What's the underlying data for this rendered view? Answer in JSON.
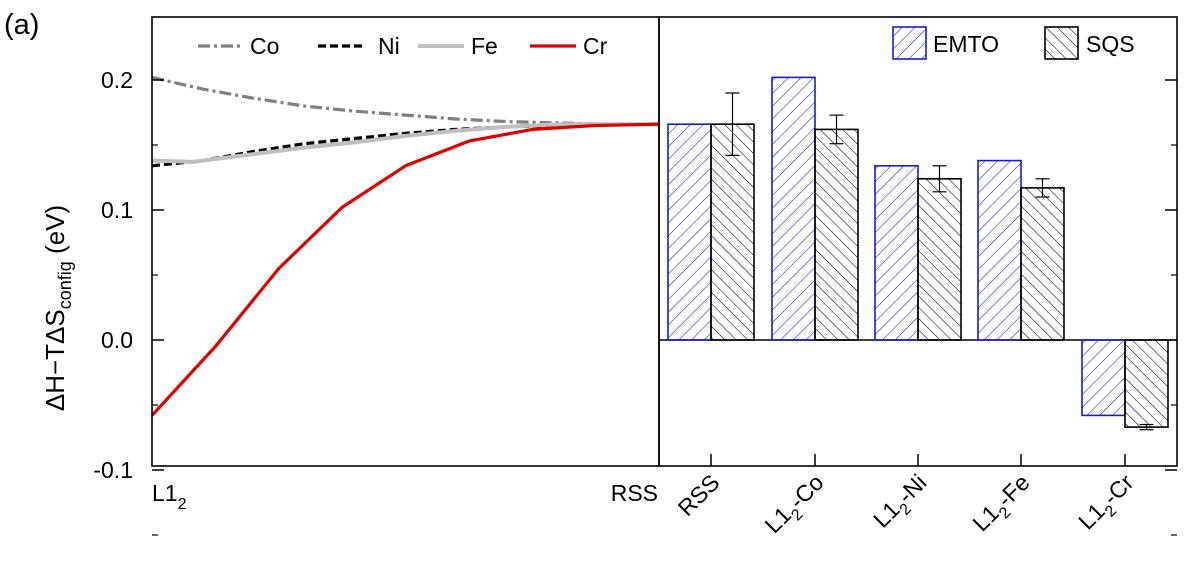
{
  "panel_label": "(a)",
  "ylabel": {
    "main": "ΔH−TΔS",
    "sub": "config",
    "unit": " (eV)"
  },
  "yticks": [
    "0.2",
    "0.1",
    "0.0",
    "-0.1"
  ],
  "ytick_values": [
    0.2,
    0.1,
    0.0,
    -0.1
  ],
  "chart_data": [
    {
      "type": "line",
      "xlabel_left": "L1",
      "xlabel_left_sub": "2",
      "xlabel_right": "RSS",
      "xlim": [
        0,
        1
      ],
      "ylim": [
        -0.1,
        0.25
      ],
      "legend_position": "top",
      "series": [
        {
          "name": "Co",
          "color": "#7f7f7f",
          "style": "dash-dot",
          "x": [
            0,
            0.1,
            0.2,
            0.3,
            0.4,
            0.5,
            0.6,
            0.7,
            0.8,
            0.9,
            1.0
          ],
          "y": [
            0.202,
            0.193,
            0.186,
            0.18,
            0.176,
            0.173,
            0.17,
            0.168,
            0.167,
            0.166,
            0.166
          ]
        },
        {
          "name": "Ni",
          "color": "#000000",
          "style": "dash",
          "x": [
            0,
            0.1,
            0.2,
            0.3,
            0.4,
            0.5,
            0.6,
            0.7,
            0.8,
            0.9,
            1.0
          ],
          "y": [
            0.134,
            0.138,
            0.145,
            0.151,
            0.155,
            0.159,
            0.162,
            0.164,
            0.165,
            0.166,
            0.166
          ]
        },
        {
          "name": "Fe",
          "color": "#bfbfbf",
          "style": "solid",
          "x": [
            0,
            0.08,
            0.2,
            0.3,
            0.4,
            0.5,
            0.6,
            0.7,
            0.8,
            0.9,
            1.0
          ],
          "y": [
            0.138,
            0.137,
            0.143,
            0.148,
            0.152,
            0.157,
            0.161,
            0.164,
            0.166,
            0.166,
            0.166
          ]
        },
        {
          "name": "Cr",
          "color": "#e00000",
          "style": "solid",
          "x": [
            0,
            0.125,
            0.25,
            0.375,
            0.5,
            0.625,
            0.75,
            0.875,
            1.0
          ],
          "y": [
            -0.058,
            -0.005,
            0.055,
            0.102,
            0.134,
            0.153,
            0.162,
            0.165,
            0.166
          ]
        }
      ]
    },
    {
      "type": "bar",
      "categories": [
        {
          "base": "RSS",
          "sub": "",
          "tail": ""
        },
        {
          "base": "L1",
          "sub": "2",
          "tail": "-Co"
        },
        {
          "base": "L1",
          "sub": "2",
          "tail": "-Ni"
        },
        {
          "base": "L1",
          "sub": "2",
          "tail": "-Fe"
        },
        {
          "base": "L1",
          "sub": "2",
          "tail": "-Cr"
        }
      ],
      "ylim": [
        -0.1,
        0.25
      ],
      "legend_position": "top-right",
      "series": [
        {
          "name": "EMTO",
          "edge_color": "#1a1ad6",
          "hatch": "diagonal-up",
          "values": [
            0.166,
            0.202,
            0.134,
            0.138,
            -0.058
          ],
          "errors": null
        },
        {
          "name": "SQS",
          "edge_color": "#000000",
          "hatch": "diagonal-down",
          "values": [
            0.166,
            0.162,
            0.124,
            0.117,
            -0.067
          ],
          "errors": [
            0.024,
            0.011,
            0.01,
            0.007,
            0.002
          ]
        }
      ]
    }
  ]
}
